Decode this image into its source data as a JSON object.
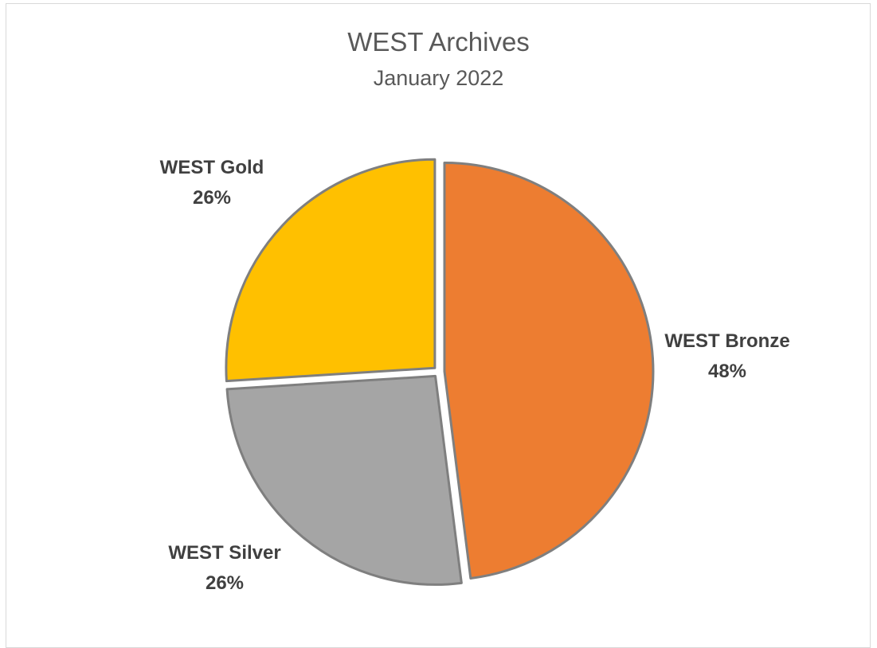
{
  "chart_data": {
    "type": "pie",
    "title": "WEST Archives",
    "subtitle": "January 2022",
    "slices": [
      {
        "name": "WEST Bronze",
        "value": 48,
        "label": "48%",
        "color": "#ED7D31"
      },
      {
        "name": "WEST Silver",
        "value": 26,
        "label": "26%",
        "color": "#A5A5A5"
      },
      {
        "name": "WEST Gold",
        "value": 26,
        "label": "26%",
        "color": "#FFC000"
      }
    ],
    "legend": "none",
    "exploded": true,
    "slice_border_color": "#7F7F7F"
  }
}
